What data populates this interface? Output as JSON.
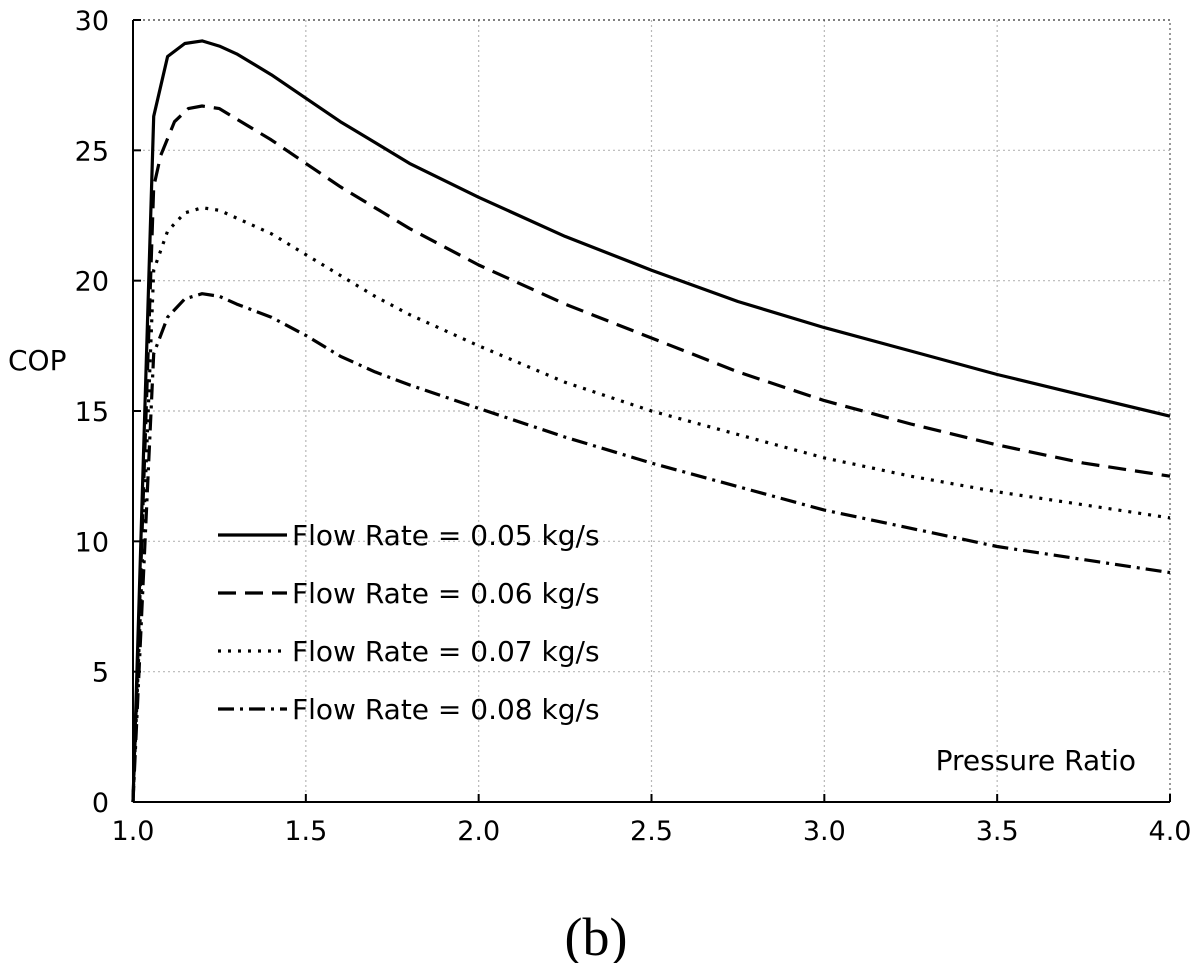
{
  "chart_data": {
    "type": "line",
    "xlabel": "Pressure Ratio",
    "ylabel": "COP",
    "caption": "(b)",
    "xlim": [
      1.0,
      4.0
    ],
    "ylim": [
      0,
      30
    ],
    "x_ticks": [
      "1.0",
      "1.5",
      "2.0",
      "2.5",
      "3.0",
      "3.5",
      "4.0"
    ],
    "y_ticks": [
      "0",
      "5",
      "10",
      "15",
      "20",
      "25",
      "30"
    ],
    "grid": true,
    "legend_position": "center-left",
    "series": [
      {
        "name": "Flow Rate = 0.05 kg/s",
        "style": "solid",
        "x": [
          1.0,
          1.06,
          1.1,
          1.15,
          1.2,
          1.25,
          1.3,
          1.4,
          1.5,
          1.6,
          1.7,
          1.8,
          2.0,
          2.25,
          2.5,
          2.75,
          3.0,
          3.25,
          3.5,
          3.75,
          4.0
        ],
        "y": [
          0,
          26.3,
          28.6,
          29.1,
          29.2,
          29.0,
          28.7,
          27.9,
          27.0,
          26.1,
          25.3,
          24.5,
          23.2,
          21.7,
          20.4,
          19.2,
          18.2,
          17.3,
          16.4,
          15.6,
          14.8
        ]
      },
      {
        "name": "Flow Rate = 0.06 kg/s",
        "style": "dashed",
        "x": [
          1.0,
          1.06,
          1.08,
          1.12,
          1.16,
          1.2,
          1.25,
          1.3,
          1.4,
          1.5,
          1.6,
          1.7,
          1.8,
          2.0,
          2.25,
          2.5,
          2.75,
          3.0,
          3.25,
          3.5,
          3.75,
          4.0
        ],
        "y": [
          0,
          23.6,
          24.8,
          26.1,
          26.6,
          26.7,
          26.6,
          26.2,
          25.4,
          24.5,
          23.6,
          22.8,
          22.0,
          20.6,
          19.1,
          17.8,
          16.5,
          15.4,
          14.5,
          13.7,
          13.0,
          12.5
        ]
      },
      {
        "name": "Flow Rate = 0.07 kg/s",
        "style": "dotted",
        "x": [
          1.0,
          1.06,
          1.1,
          1.15,
          1.2,
          1.25,
          1.3,
          1.4,
          1.5,
          1.6,
          1.7,
          1.8,
          2.0,
          2.25,
          2.5,
          2.75,
          3.0,
          3.25,
          3.5,
          3.75,
          4.0
        ],
        "y": [
          0,
          20.4,
          21.9,
          22.6,
          22.8,
          22.7,
          22.4,
          21.8,
          21.0,
          20.2,
          19.4,
          18.7,
          17.5,
          16.1,
          15.0,
          14.1,
          13.2,
          12.5,
          11.9,
          11.4,
          10.9
        ]
      },
      {
        "name": "Flow Rate = 0.08 kg/s",
        "style": "dash-dot",
        "x": [
          1.0,
          1.06,
          1.1,
          1.15,
          1.2,
          1.25,
          1.3,
          1.4,
          1.5,
          1.6,
          1.7,
          1.8,
          2.0,
          2.25,
          2.5,
          2.75,
          3.0,
          3.25,
          3.5,
          3.75,
          4.0
        ],
        "y": [
          0,
          17.2,
          18.6,
          19.3,
          19.5,
          19.4,
          19.1,
          18.6,
          17.9,
          17.1,
          16.5,
          16.0,
          15.1,
          14.0,
          13.0,
          12.1,
          11.2,
          10.5,
          9.8,
          9.3,
          8.8
        ]
      }
    ]
  }
}
